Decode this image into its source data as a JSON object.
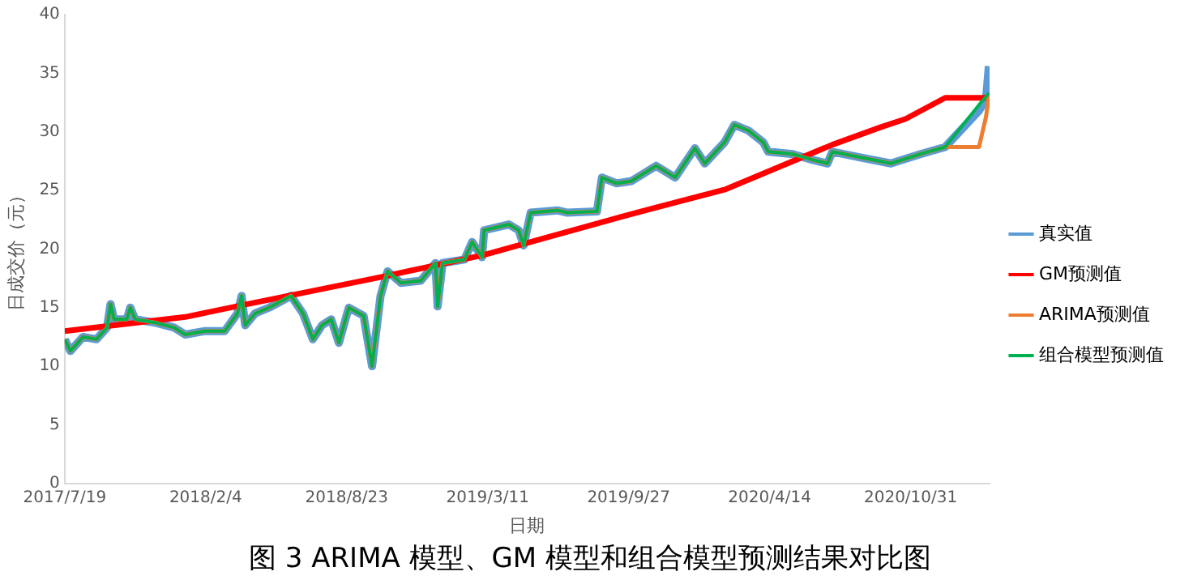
{
  "chart_data": {
    "type": "line",
    "title": "图 3 ARIMA 模型、GM 模型和组合模型预测结果对比图",
    "xlabel": "日期",
    "ylabel": "日成交价（元）",
    "x": [
      "2017-07-19",
      "2017-07-27",
      "2017-08-14",
      "2017-09-02",
      "2017-09-17",
      "2017-09-22",
      "2017-09-27",
      "2017-10-15",
      "2017-10-20",
      "2017-10-27",
      "2017-11-26",
      "2017-12-21",
      "2018-01-06",
      "2018-02-03",
      "2018-03-03",
      "2018-03-21",
      "2018-03-27",
      "2018-04-01",
      "2018-04-15",
      "2018-05-05",
      "2018-06-05",
      "2018-06-22",
      "2018-07-06",
      "2018-07-19",
      "2018-08-01",
      "2018-08-12",
      "2018-08-26",
      "2018-09-16",
      "2018-09-28",
      "2018-10-10",
      "2018-10-20",
      "2018-11-08",
      "2018-12-06",
      "2018-12-27",
      "2018-12-30",
      "2019-01-06",
      "2019-02-06",
      "2019-02-17",
      "2019-03-03",
      "2019-03-06",
      "2019-04-10",
      "2019-04-24",
      "2019-05-01",
      "2019-05-11",
      "2019-06-18",
      "2019-07-02",
      "2019-08-13",
      "2019-08-20",
      "2019-09-10",
      "2019-10-01",
      "2019-11-05",
      "2019-12-02",
      "2019-12-30",
      "2020-01-13",
      "2020-02-10",
      "2020-02-24",
      "2020-03-15",
      "2020-04-05",
      "2020-04-12",
      "2020-05-17",
      "2020-06-14",
      "2020-07-05",
      "2020-07-12",
      "2020-08-22",
      "2020-10-03",
      "2020-11-14",
      "2020-12-19",
      "2021-02-05",
      "2021-02-15",
      "2021-02-19"
    ],
    "series": [
      {
        "name": "真实值",
        "color": "#5b9bd5",
        "values": [
          12.3,
          11.3,
          12.5,
          12.3,
          13.3,
          15.3,
          14,
          14,
          15,
          14,
          13.7,
          13.3,
          12.7,
          13,
          13,
          14.5,
          16,
          13.5,
          14.5,
          15,
          16,
          14.5,
          12.3,
          13.5,
          14,
          12,
          15,
          14.3,
          10,
          16,
          18.1,
          17.1,
          17.3,
          18.8,
          15.1,
          18.8,
          19.1,
          20.6,
          19.3,
          21.6,
          22.1,
          21.6,
          20.3,
          23.1,
          23.3,
          23.1,
          23.2,
          26.1,
          25.6,
          25.8,
          27.1,
          26.1,
          28.6,
          27.3,
          29.1,
          30.6,
          30.1,
          29.1,
          28.3,
          28.1,
          27.6,
          27.3,
          28.3,
          27.8,
          27.3,
          28.1,
          28.7,
          31.8,
          32.8,
          35.6
        ]
      },
      {
        "name": "GM预测值",
        "color": "#ff0000",
        "x": [
          "2017-07-19",
          "2018-01-06",
          "2018-03-27",
          "2018-10-10",
          "2019-03-06",
          "2019-10-08",
          "2020-02-12",
          "2020-07-12",
          "2020-09-19",
          "2020-10-24",
          "2020-12-19",
          "2021-02-19"
        ],
        "values": [
          13,
          14.2,
          15.2,
          17.6,
          19.5,
          23.1,
          25.1,
          28.9,
          30.4,
          31.1,
          32.9,
          32.9
        ]
      },
      {
        "name": "ARIMA预测值",
        "color": "#ed7d31",
        "values": [
          12.3,
          11.3,
          12.5,
          12.3,
          13.3,
          15.3,
          14,
          14,
          15,
          14,
          13.7,
          13.3,
          12.7,
          13,
          13,
          14.5,
          16,
          13.5,
          14.5,
          15,
          16,
          14.5,
          12.3,
          13.5,
          14,
          12,
          15,
          14.3,
          10,
          16,
          18.1,
          17.1,
          17.3,
          18.8,
          15.1,
          18.8,
          19.1,
          20.6,
          19.3,
          21.6,
          22.1,
          21.6,
          20.3,
          23.1,
          23.3,
          23.1,
          23.2,
          26.1,
          25.6,
          25.8,
          27.1,
          26.1,
          28.6,
          27.3,
          29.1,
          30.6,
          30.1,
          29.1,
          28.3,
          28.1,
          27.6,
          27.3,
          28.3,
          27.8,
          27.3,
          28.1,
          28.7,
          28.7,
          31.3,
          33.1
        ]
      },
      {
        "name": "组合模型预测值",
        "color": "#00b050",
        "values": [
          12.3,
          11.3,
          12.5,
          12.3,
          13.3,
          15.3,
          14,
          14,
          15,
          14,
          13.7,
          13.3,
          12.7,
          13,
          13,
          14.5,
          16,
          13.5,
          14.5,
          15,
          16,
          14.5,
          12.3,
          13.5,
          14,
          12,
          15,
          14.3,
          10,
          16,
          18.1,
          17.1,
          17.3,
          18.8,
          15.1,
          18.8,
          19.1,
          20.6,
          19.3,
          21.6,
          22.1,
          21.6,
          20.3,
          23.1,
          23.3,
          23.1,
          23.2,
          26.1,
          25.6,
          25.8,
          27.1,
          26.1,
          28.6,
          27.3,
          29.1,
          30.6,
          30.1,
          29.1,
          28.3,
          28.1,
          27.6,
          27.3,
          28.3,
          27.8,
          27.3,
          28.1,
          28.7,
          32.3,
          33,
          33.3
        ]
      }
    ],
    "xlim": [
      "2017-07-19",
      "2021-02-20"
    ],
    "xticks": [
      {
        "value": "2017-07-19",
        "label": "2017/7/19"
      },
      {
        "value": "2018-02-04",
        "label": "2018/2/4"
      },
      {
        "value": "2018-08-23",
        "label": "2018/8/23"
      },
      {
        "value": "2019-03-11",
        "label": "2019/3/11"
      },
      {
        "value": "2019-09-27",
        "label": "2019/9/27"
      },
      {
        "value": "2020-04-14",
        "label": "2020/4/14"
      },
      {
        "value": "2020-10-31",
        "label": "2020/10/31"
      }
    ],
    "ylim": [
      0,
      40
    ],
    "yticks": [
      0,
      5,
      10,
      15,
      20,
      25,
      30,
      35,
      40
    ],
    "grid": false,
    "legend": "right",
    "marker": "none",
    "line_style": "solid"
  }
}
